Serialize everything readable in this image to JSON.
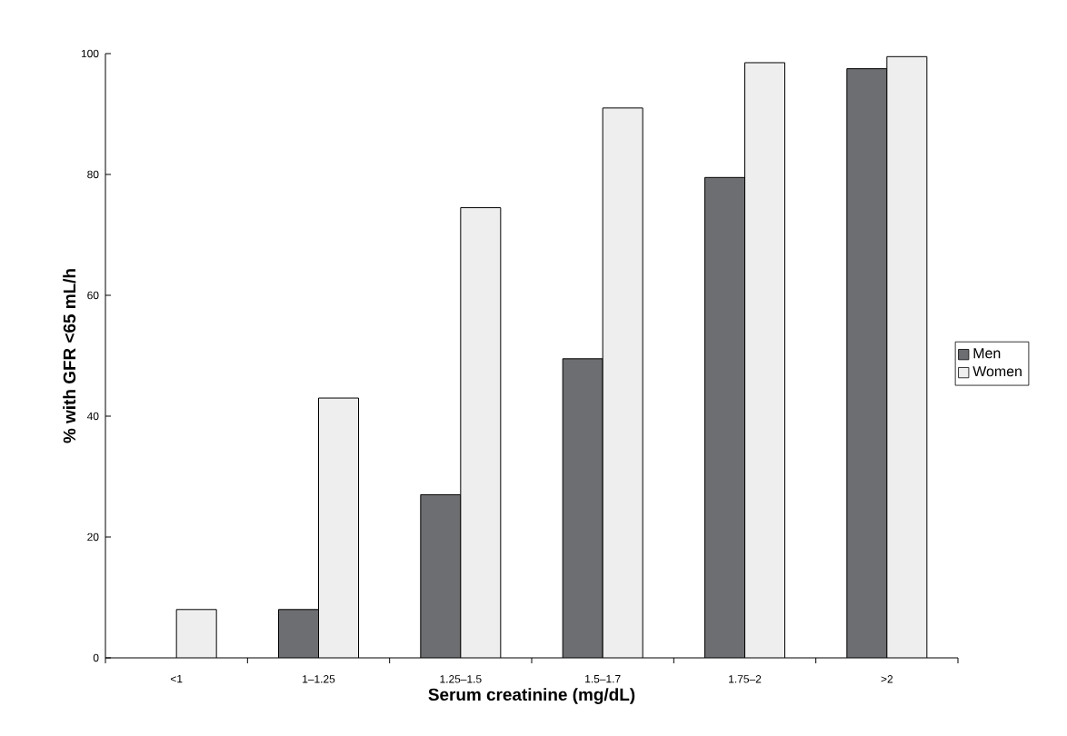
{
  "chart_data": {
    "type": "bar",
    "xlabel": "Serum creatinine (mg/dL)",
    "ylabel": "% with GFR <65 mL/h",
    "categories": [
      "<1",
      "1–1.25",
      "1.25–1.5",
      "1.5–1.7",
      "1.75–2",
      ">2"
    ],
    "series": [
      {
        "name": "Men",
        "color": "#6d6e71",
        "values": [
          null,
          8,
          27,
          49.5,
          79.5,
          97.5
        ]
      },
      {
        "name": "Women",
        "color": "#eeeeee",
        "values": [
          8,
          43,
          74.5,
          91,
          98.5,
          99.5
        ]
      }
    ],
    "ylim": [
      0,
      100
    ],
    "yticks": [
      0,
      20,
      40,
      60,
      80,
      100
    ],
    "grid": false,
    "legend": "right"
  }
}
